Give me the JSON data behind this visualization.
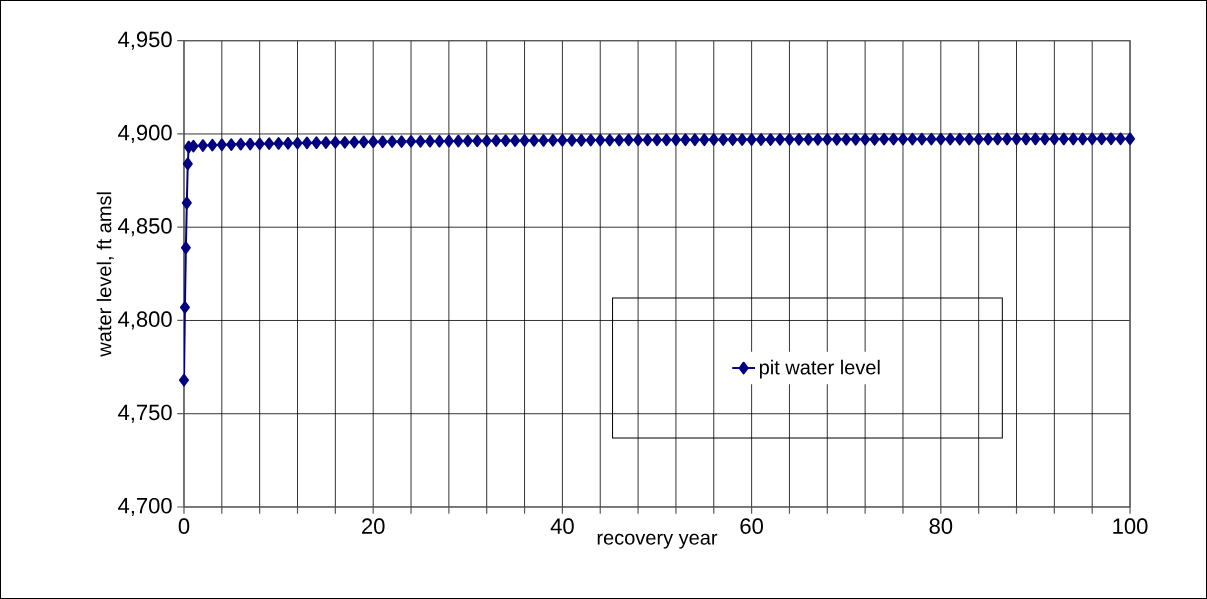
{
  "chart_data": {
    "type": "line",
    "xlabel": "recovery year",
    "ylabel": "water level, ft amsl",
    "xlim": [
      0,
      100
    ],
    "ylim": [
      4700,
      4950
    ],
    "xticks": [
      0,
      {
        "value": 4,
        "label": null
      },
      {
        "value": 8,
        "label": null
      },
      {
        "value": 12,
        "label": null
      },
      {
        "value": 16,
        "label": null
      },
      20,
      {
        "value": 24,
        "label": null
      },
      {
        "value": 28,
        "label": null
      },
      {
        "value": 32,
        "label": null
      },
      {
        "value": 36,
        "label": null
      },
      40,
      {
        "value": 44,
        "label": null
      },
      {
        "value": 48,
        "label": null
      },
      {
        "value": 52,
        "label": null
      },
      {
        "value": 56,
        "label": null
      },
      60,
      {
        "value": 64,
        "label": null
      },
      {
        "value": 68,
        "label": null
      },
      {
        "value": 72,
        "label": null
      },
      {
        "value": 76,
        "label": null
      },
      80,
      {
        "value": 84,
        "label": null
      },
      {
        "value": 88,
        "label": null
      },
      {
        "value": 92,
        "label": null
      },
      {
        "value": 96,
        "label": null
      },
      100
    ],
    "yticks": [
      {
        "value": 4700,
        "label": "4,700"
      },
      {
        "value": 4750,
        "label": "4,750"
      },
      {
        "value": 4800,
        "label": "4,800"
      },
      {
        "value": 4850,
        "label": "4,850"
      },
      {
        "value": 4900,
        "label": "4,900"
      },
      {
        "value": 4950,
        "label": "4,950"
      }
    ],
    "grid": true,
    "legend": "bottom right",
    "marker": "diamond",
    "line_style": "solid",
    "series": [
      {
        "name": "pit water level",
        "color": "#000080",
        "x": [
          0,
          0.1,
          0.2,
          0.3,
          0.4,
          0.5,
          1,
          2,
          3,
          4,
          5,
          6,
          7,
          8,
          9,
          10,
          11,
          12,
          13,
          14,
          15,
          16,
          17,
          18,
          19,
          20,
          21,
          22,
          23,
          24,
          25,
          26,
          27,
          28,
          29,
          30,
          31,
          32,
          33,
          34,
          35,
          36,
          37,
          38,
          39,
          40,
          41,
          42,
          43,
          44,
          45,
          46,
          47,
          48,
          49,
          50,
          51,
          52,
          53,
          54,
          55,
          56,
          57,
          58,
          59,
          60,
          61,
          62,
          63,
          64,
          65,
          66,
          67,
          68,
          69,
          70,
          71,
          72,
          73,
          74,
          75,
          76,
          77,
          78,
          79,
          80,
          81,
          82,
          83,
          84,
          85,
          86,
          87,
          88,
          89,
          90,
          91,
          92,
          93,
          94,
          95,
          96,
          97,
          98,
          99,
          100
        ],
        "values": [
          4768,
          4807,
          4839,
          4863,
          4884,
          4893,
          4893.5,
          4893.8,
          4894.0,
          4894.2,
          4894.3,
          4894.5,
          4894.6,
          4894.7,
          4894.8,
          4894.9,
          4895.0,
          4895.1,
          4895.2,
          4895.3,
          4895.4,
          4895.5,
          4895.5,
          4895.6,
          4895.7,
          4895.8,
          4895.8,
          4895.9,
          4895.9,
          4896.0,
          4896.0,
          4896.1,
          4896.1,
          4896.2,
          4896.2,
          4896.3,
          4896.3,
          4896.3,
          4896.4,
          4896.4,
          4896.4,
          4896.5,
          4896.5,
          4896.5,
          4896.6,
          4896.6,
          4896.6,
          4896.6,
          4896.7,
          4896.7,
          4896.7,
          4896.7,
          4896.8,
          4896.8,
          4896.8,
          4896.8,
          4896.8,
          4896.9,
          4896.9,
          4896.9,
          4896.9,
          4897.0,
          4897.0,
          4897.0,
          4897.0,
          4897.0,
          4897.0,
          4897.0,
          4897.1,
          4897.1,
          4897.1,
          4897.1,
          4897.1,
          4897.1,
          4897.1,
          4897.1,
          4897.1,
          4897.1,
          4897.1,
          4897.2,
          4897.2,
          4897.2,
          4897.2,
          4897.2,
          4897.2,
          4897.2,
          4897.2,
          4897.2,
          4897.2,
          4897.2,
          4897.2,
          4897.3,
          4897.3,
          4897.3,
          4897.3,
          4897.3,
          4897.3,
          4897.3,
          4897.3,
          4897.3,
          4897.3,
          4897.4,
          4897.4,
          4897.4,
          4897.4,
          4897.4
        ]
      }
    ]
  }
}
